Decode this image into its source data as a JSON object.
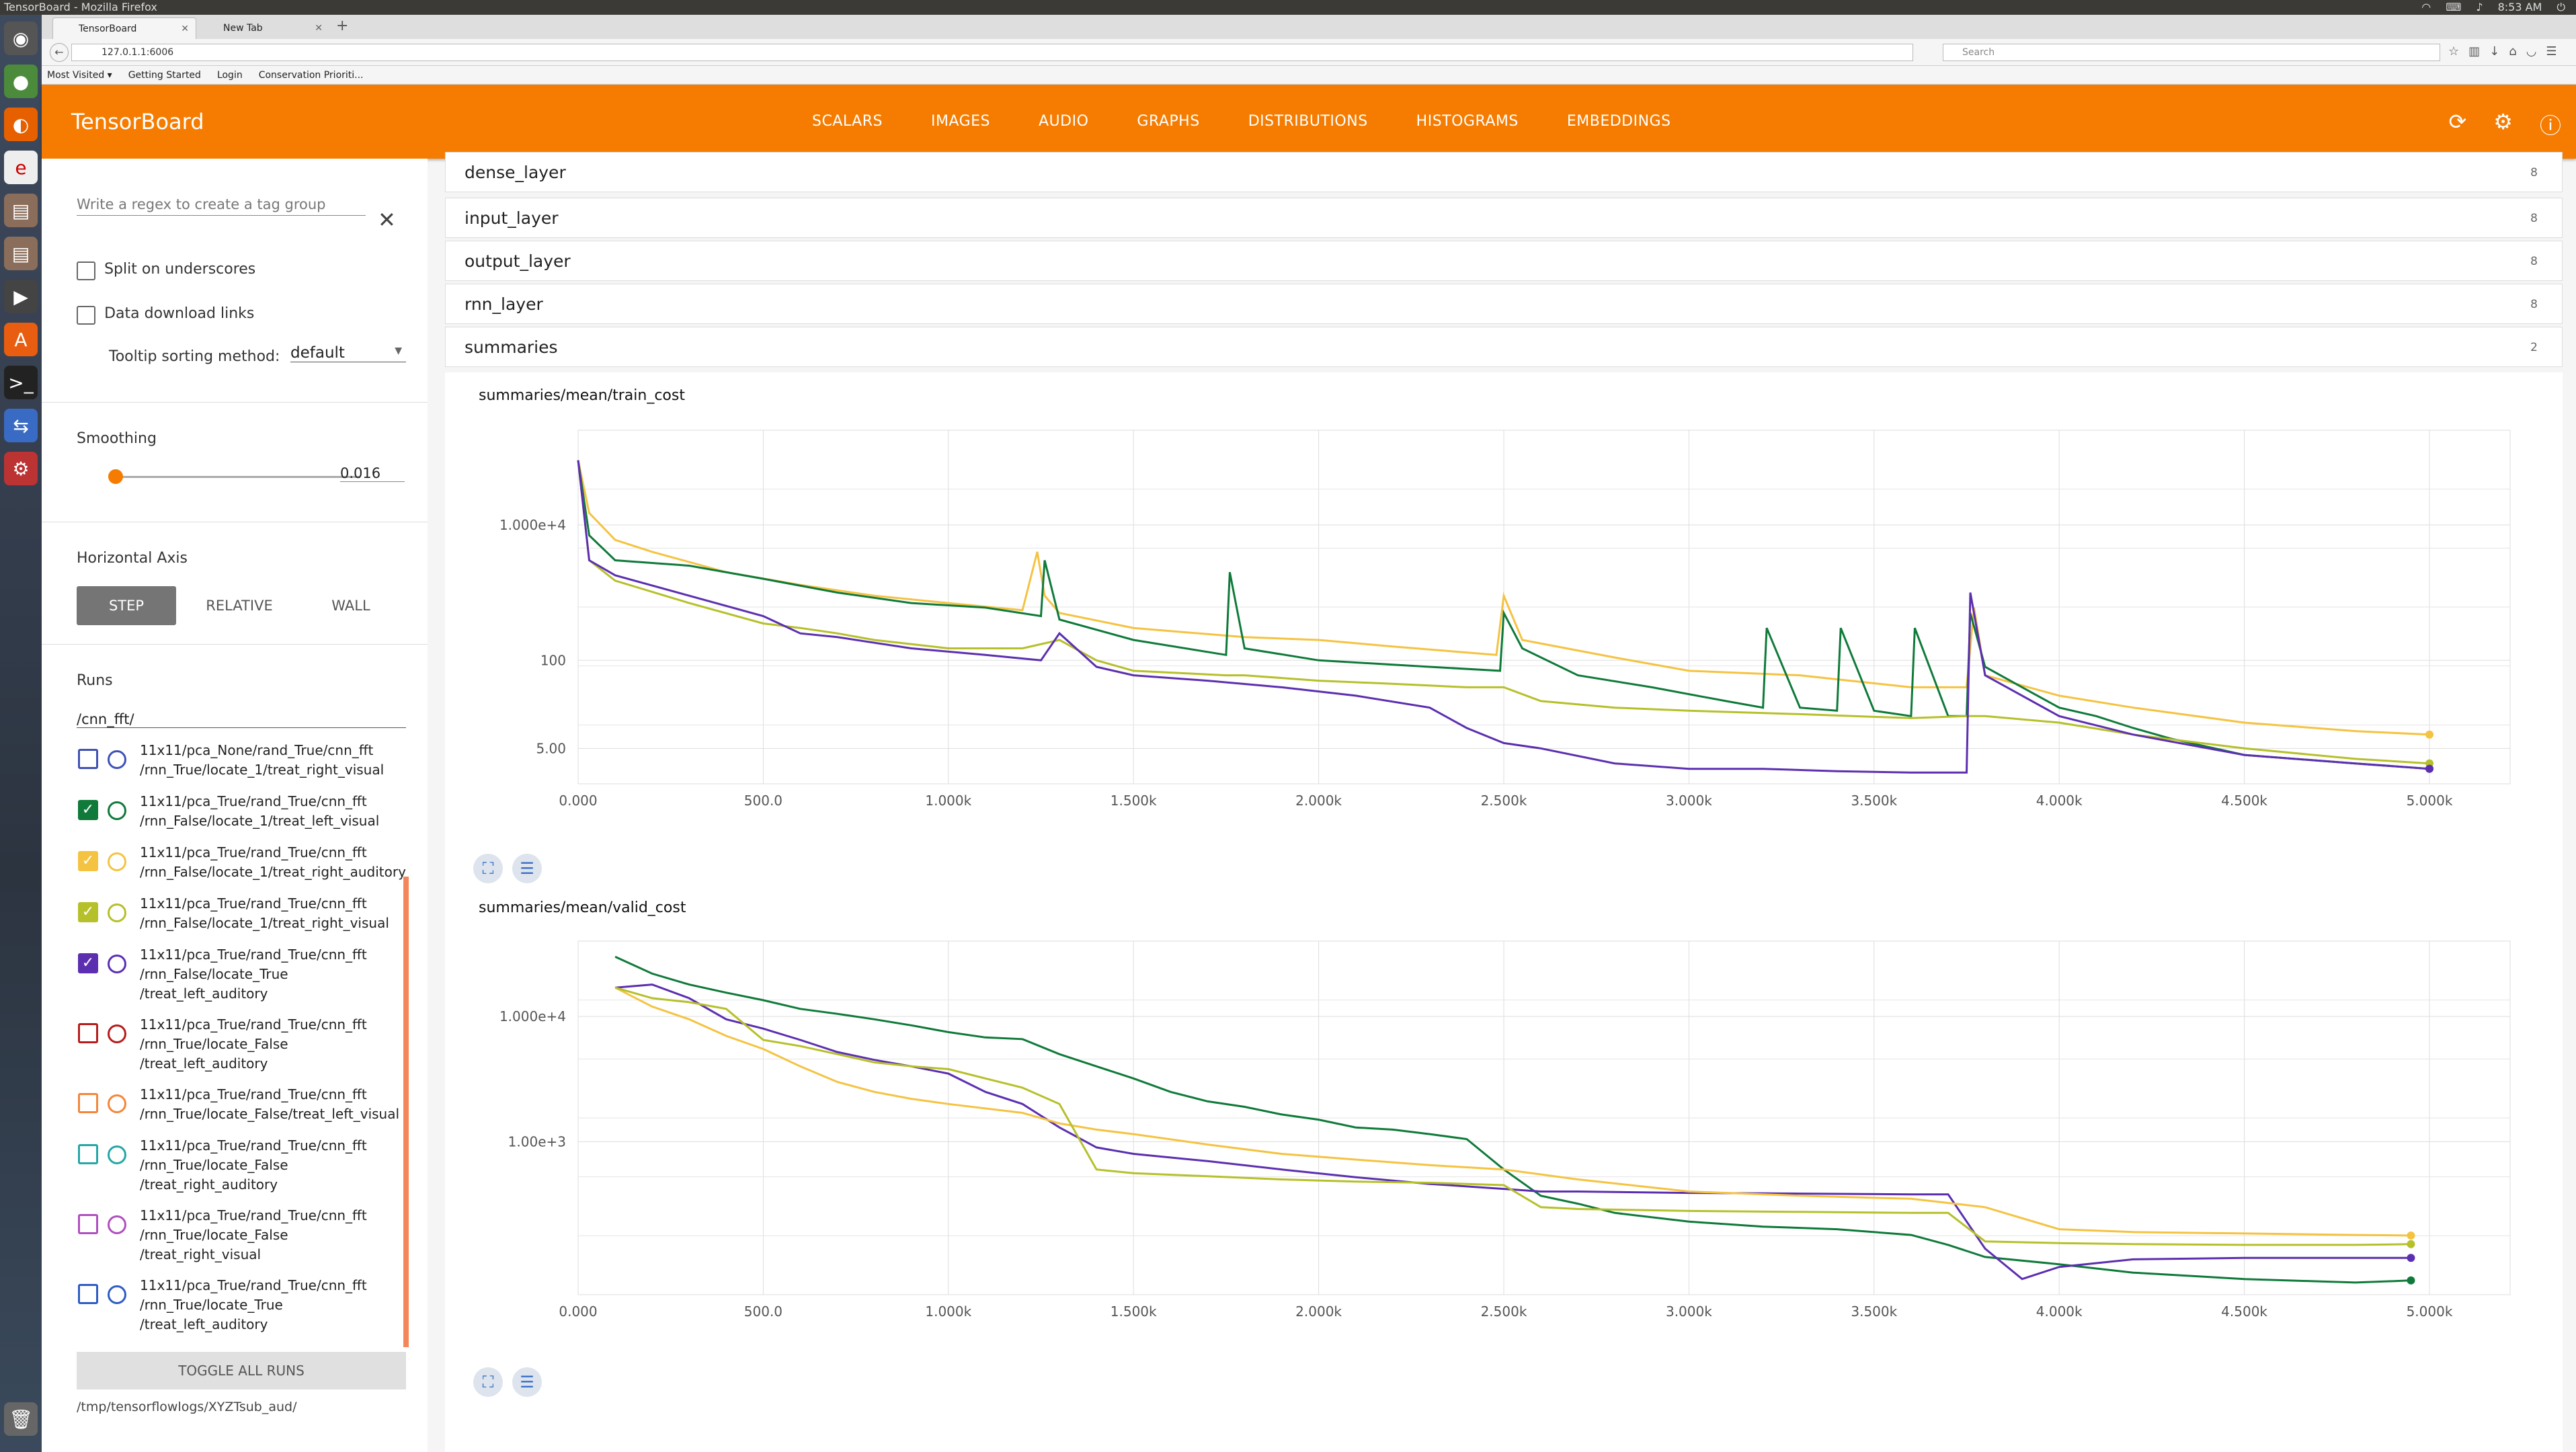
{
  "os": {
    "title": "TensorBoard - Mozilla Firefox",
    "time": "8:53 AM"
  },
  "browser": {
    "tabs": [
      {
        "label": "TensorBoard"
      },
      {
        "label": "New Tab"
      }
    ],
    "url": "127.0.1.1:6006",
    "search_placeholder": "Search",
    "bookmarks": [
      "Most Visited ▾",
      "Getting Started",
      "Login",
      "Conservation Prioriti..."
    ]
  },
  "toolbar": {
    "title": "TensorBoard",
    "tabs": [
      "SCALARS",
      "IMAGES",
      "AUDIO",
      "GRAPHS",
      "DISTRIBUTIONS",
      "HISTOGRAMS",
      "EMBEDDINGS"
    ],
    "selected_tab": "SCALARS"
  },
  "sidebar": {
    "regex_placeholder": "Write a regex to create a tag group",
    "split_label": "Split on underscores",
    "download_label": "Data download links",
    "tooltip_label": "Tooltip sorting method:",
    "tooltip_value": "default",
    "smoothing_label": "Smoothing",
    "smoothing_value": "0.016",
    "smoothing_fraction": 0.016,
    "haxis_label": "Horizontal Axis",
    "haxis_options": [
      "STEP",
      "RELATIVE",
      "WALL"
    ],
    "haxis_selected": "STEP",
    "runs_label": "Runs",
    "runs_filter": "/cnn_fft/",
    "runs": [
      {
        "text": "11x11/pca_None/rand_True/cnn_fft\n/rnn_True/locate_1/treat_right_visual",
        "color": "#3f51b5",
        "checked": false
      },
      {
        "text": "11x11/pca_True/rand_True/cnn_fft\n/rnn_False/locate_1/treat_left_visual",
        "color": "#0f7a3a",
        "checked": true
      },
      {
        "text": "11x11/pca_True/rand_True/cnn_fft\n/rnn_False/locate_1/treat_right_auditory",
        "color": "#f5c342",
        "checked": true
      },
      {
        "text": "11x11/pca_True/rand_True/cnn_fft\n/rnn_False/locate_1/treat_right_visual",
        "color": "#b6c02a",
        "checked": true
      },
      {
        "text": "11x11/pca_True/rand_True/cnn_fft\n/rnn_False/locate_True\n/treat_left_auditory",
        "color": "#5c2fb0",
        "checked": true
      },
      {
        "text": "11x11/pca_True/rand_True/cnn_fft\n/rnn_True/locate_False\n/treat_left_auditory",
        "color": "#b71c1c",
        "checked": false
      },
      {
        "text": "11x11/pca_True/rand_True/cnn_fft\n/rnn_True/locate_False/treat_left_visual",
        "color": "#f4863a",
        "checked": false
      },
      {
        "text": "11x11/pca_True/rand_True/cnn_fft\n/rnn_True/locate_False\n/treat_right_auditory",
        "color": "#26a6a6",
        "checked": false
      },
      {
        "text": "11x11/pca_True/rand_True/cnn_fft\n/rnn_True/locate_False\n/treat_right_visual",
        "color": "#b04fbf",
        "checked": false
      },
      {
        "text": "11x11/pca_True/rand_True/cnn_fft\n/rnn_True/locate_True\n/treat_left_auditory",
        "color": "#2e5cc4",
        "checked": false
      }
    ],
    "toggle_label": "TOGGLE ALL RUNS",
    "logdir": "/tmp/tensorflowlogs/XYZTsub_aud/"
  },
  "categories": [
    {
      "name": "dense_layer",
      "count": "8"
    },
    {
      "name": "input_layer",
      "count": "8"
    },
    {
      "name": "output_layer",
      "count": "8"
    },
    {
      "name": "rnn_layer",
      "count": "8"
    },
    {
      "name": "summaries",
      "count": "2"
    }
  ],
  "chart_data": [
    {
      "type": "line",
      "title": "summaries/mean/train_cost",
      "y_scale": "log",
      "xlim": [
        0,
        5000
      ],
      "x_tick_labels": [
        "0.000",
        "500.0",
        "1.000k",
        "1.500k",
        "2.000k",
        "2.500k",
        "3.000k",
        "3.500k",
        "4.000k",
        "4.500k",
        "5.000k"
      ],
      "y_tick_labels": [
        "1.000e+4",
        "100",
        "5.00"
      ],
      "y_tick_values": [
        10000,
        100,
        5
      ],
      "ylim": [
        1.5,
        250000
      ],
      "grid": true,
      "series": [
        {
          "color": "#f5c342",
          "x": [
            0,
            30,
            100,
            200,
            400,
            600,
            800,
            1000,
            1200,
            1240,
            1260,
            1300,
            1500,
            1800,
            2000,
            2200,
            2480,
            2500,
            2550,
            2800,
            3000,
            3300,
            3600,
            3750,
            3770,
            3800,
            4000,
            4200,
            4500,
            4800,
            5000
          ],
          "y": [
            90000,
            15000,
            6000,
            4000,
            2000,
            1300,
            900,
            700,
            550,
            4000,
            900,
            500,
            300,
            220,
            200,
            160,
            120,
            900,
            200,
            110,
            70,
            60,
            40,
            40,
            600,
            60,
            30,
            20,
            12,
            9,
            8
          ]
        },
        {
          "color": "#0f7a3a",
          "x": [
            0,
            30,
            100,
            300,
            500,
            700,
            900,
            1100,
            1250,
            1260,
            1300,
            1500,
            1750,
            1760,
            1800,
            2000,
            2300,
            2490,
            2500,
            2550,
            2700,
            2900,
            3100,
            3200,
            3210,
            3300,
            3400,
            3410,
            3500,
            3600,
            3610,
            3700,
            3750,
            3760,
            3800,
            3900,
            4000,
            4100,
            4200,
            4300,
            4500,
            4800,
            5000
          ],
          "y": [
            90000,
            7000,
            3000,
            2500,
            1600,
            1000,
            700,
            600,
            450,
            3000,
            400,
            200,
            120,
            2000,
            150,
            100,
            80,
            70,
            500,
            150,
            60,
            40,
            25,
            20,
            300,
            20,
            18,
            300,
            18,
            15,
            300,
            15,
            15,
            500,
            80,
            40,
            20,
            15,
            10,
            7,
            4,
            3,
            2.5
          ]
        },
        {
          "color": "#b6c02a",
          "x": [
            0,
            30,
            100,
            300,
            500,
            600,
            700,
            800,
            1000,
            1200,
            1300,
            1400,
            1500,
            1750,
            1800,
            2000,
            2200,
            2400,
            2500,
            2600,
            2800,
            3000,
            3300,
            3600,
            3750,
            3800,
            4000,
            4200,
            4500,
            4800,
            5000
          ],
          "y": [
            90000,
            3000,
            1500,
            700,
            350,
            300,
            250,
            200,
            150,
            150,
            200,
            100,
            70,
            60,
            60,
            50,
            45,
            40,
            40,
            25,
            20,
            18,
            16,
            14,
            15,
            15,
            12,
            8,
            5,
            3.5,
            3
          ]
        },
        {
          "color": "#5c2fb0",
          "x": [
            0,
            30,
            100,
            300,
            500,
            600,
            700,
            900,
            1100,
            1250,
            1300,
            1400,
            1500,
            1700,
            1900,
            2100,
            2300,
            2400,
            2500,
            2600,
            2800,
            3000,
            3200,
            3400,
            3600,
            3700,
            3750,
            3760,
            3800,
            4000,
            4200,
            4500,
            4800,
            5000
          ],
          "y": [
            90000,
            3000,
            1800,
            900,
            450,
            250,
            220,
            150,
            120,
            100,
            250,
            80,
            60,
            50,
            40,
            30,
            20,
            10,
            6,
            5,
            3,
            2.5,
            2.5,
            2.3,
            2.2,
            2.2,
            2.2,
            1000,
            60,
            15,
            8,
            4,
            3,
            2.5
          ]
        }
      ]
    },
    {
      "type": "line",
      "title": "summaries/mean/valid_cost",
      "y_scale": "log",
      "xlim": [
        0,
        5000
      ],
      "x_tick_labels": [
        "0.000",
        "500.0",
        "1.000k",
        "1.500k",
        "2.000k",
        "2.500k",
        "3.000k",
        "3.500k",
        "4.000k",
        "4.500k",
        "5.000k"
      ],
      "y_tick_labels": [
        "1.000e+4",
        "1.00e+3"
      ],
      "y_tick_values": [
        10000,
        1000
      ],
      "ylim": [
        60,
        40000
      ],
      "grid": true,
      "series": [
        {
          "color": "#0f7a3a",
          "x": [
            100,
            200,
            300,
            400,
            500,
            600,
            700,
            800,
            900,
            1000,
            1100,
            1200,
            1300,
            1400,
            1500,
            1600,
            1700,
            1800,
            1900,
            2000,
            2100,
            2200,
            2300,
            2400,
            2500,
            2600,
            2700,
            2800,
            3000,
            3200,
            3400,
            3600,
            3700,
            3800,
            4000,
            4200,
            4500,
            4800,
            4950
          ],
          "y": [
            30000,
            22000,
            18000,
            15500,
            13500,
            11500,
            10500,
            9500,
            8500,
            7500,
            6800,
            6600,
            5000,
            4000,
            3200,
            2500,
            2100,
            1900,
            1650,
            1500,
            1300,
            1250,
            1150,
            1050,
            600,
            370,
            320,
            270,
            230,
            210,
            200,
            180,
            150,
            120,
            105,
            90,
            80,
            75,
            78
          ]
        },
        {
          "color": "#5c2fb0",
          "x": [
            100,
            200,
            300,
            400,
            500,
            600,
            700,
            800,
            900,
            1000,
            1100,
            1200,
            1300,
            1400,
            1500,
            1700,
            1900,
            2100,
            2300,
            2500,
            2600,
            2700,
            3000,
            3300,
            3600,
            3700,
            3800,
            3900,
            4000,
            4200,
            4500,
            4800,
            4950
          ],
          "y": [
            17000,
            18000,
            14000,
            9500,
            8000,
            6500,
            5200,
            4500,
            4000,
            3500,
            2500,
            2000,
            1300,
            900,
            800,
            700,
            600,
            520,
            460,
            420,
            400,
            400,
            390,
            385,
            380,
            380,
            140,
            80,
            100,
            115,
            118,
            118,
            118
          ]
        },
        {
          "color": "#f5c342",
          "x": [
            100,
            200,
            300,
            400,
            500,
            600,
            700,
            800,
            900,
            1000,
            1200,
            1300,
            1400,
            1500,
            1700,
            1900,
            2100,
            2300,
            2500,
            2700,
            3000,
            3300,
            3600,
            3800,
            4000,
            4200,
            4500,
            4800,
            4950
          ],
          "y": [
            17000,
            12000,
            9500,
            7000,
            5500,
            4000,
            3000,
            2500,
            2200,
            2000,
            1700,
            1400,
            1250,
            1150,
            950,
            800,
            720,
            650,
            600,
            500,
            400,
            370,
            350,
            300,
            200,
            190,
            185,
            180,
            178
          ]
        },
        {
          "color": "#b6c02a",
          "x": [
            100,
            200,
            300,
            400,
            500,
            600,
            700,
            800,
            900,
            1000,
            1100,
            1200,
            1300,
            1400,
            1500,
            1700,
            1900,
            2100,
            2300,
            2400,
            2500,
            2600,
            2700,
            3000,
            3300,
            3600,
            3700,
            3800,
            4000,
            4200,
            4500,
            4800,
            4950
          ],
          "y": [
            17000,
            14000,
            13000,
            11500,
            6500,
            5800,
            5000,
            4300,
            4000,
            3800,
            3200,
            2700,
            2000,
            600,
            560,
            530,
            500,
            480,
            470,
            460,
            450,
            300,
            290,
            280,
            275,
            270,
            270,
            160,
            155,
            152,
            150,
            150,
            152
          ]
        }
      ]
    }
  ]
}
